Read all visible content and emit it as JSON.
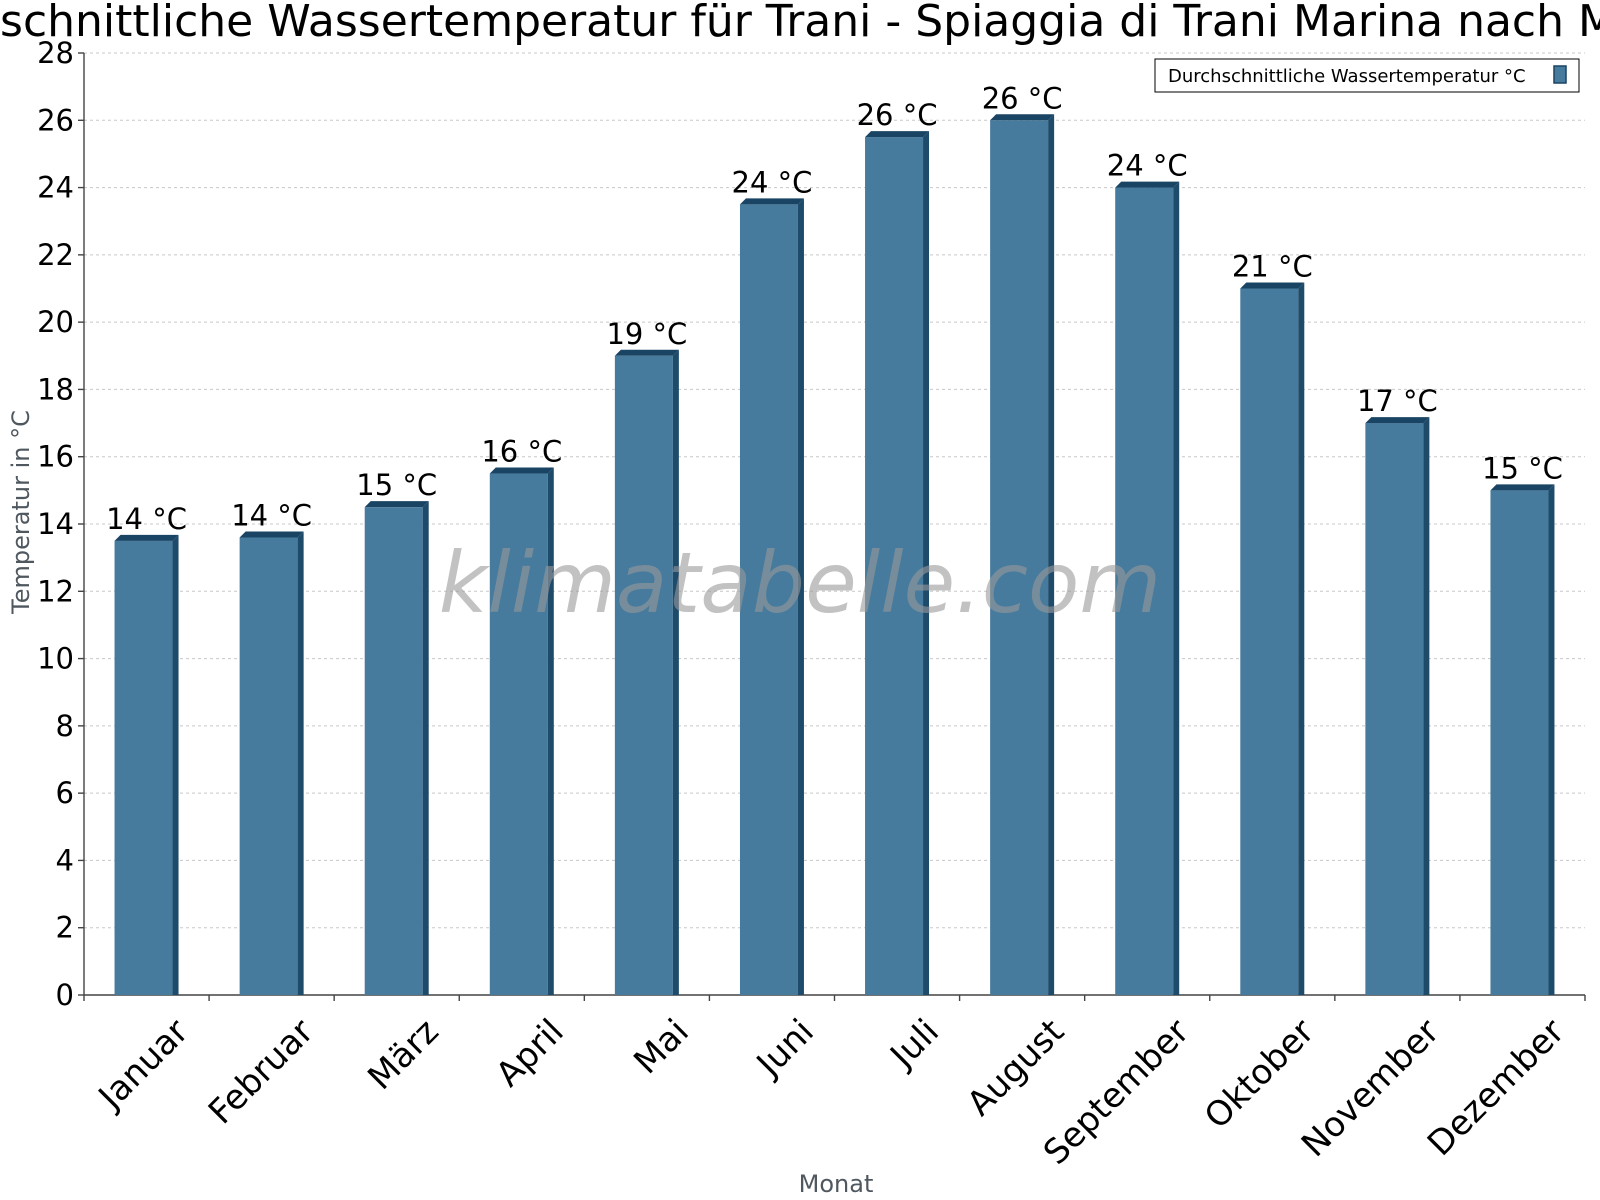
{
  "title": "Durchschnittliche Wassertemperatur für Trani - Spiaggia di Trani Marina nach Monat",
  "watermark": "klimatabelle.com",
  "colors": {
    "bar_front": "#477b9d",
    "bar_side": "#1f4b6b",
    "bar_top": "#1a4463"
  },
  "chart_data": {
    "type": "bar",
    "title": "Durchschnittliche Wassertemperatur für Trani - Spiaggia di Trani Marina nach Monat",
    "xlabel": "Monat",
    "ylabel": "Temperatur in °C",
    "categories": [
      "Januar",
      "Februar",
      "März",
      "April",
      "Mai",
      "Juni",
      "Juli",
      "August",
      "September",
      "Oktober",
      "November",
      "Dezember"
    ],
    "series": [
      {
        "name": "Durchschnittliche Wassertemperatur °C",
        "values": [
          13.5,
          13.6,
          14.5,
          15.5,
          19.0,
          23.5,
          25.5,
          26.0,
          24.0,
          21.0,
          17.0,
          15.0
        ],
        "data_labels": [
          "14 °C",
          "14 °C",
          "15 °C",
          "16 °C",
          "19 °C",
          "24 °C",
          "26 °C",
          "26 °C",
          "24 °C",
          "21 °C",
          "17 °C",
          "15 °C"
        ]
      }
    ],
    "ylim": [
      0,
      28
    ],
    "yticks": [
      0,
      2,
      4,
      6,
      8,
      10,
      12,
      14,
      16,
      18,
      20,
      22,
      24,
      26,
      28
    ],
    "grid": true,
    "legend_position": "top-right"
  }
}
